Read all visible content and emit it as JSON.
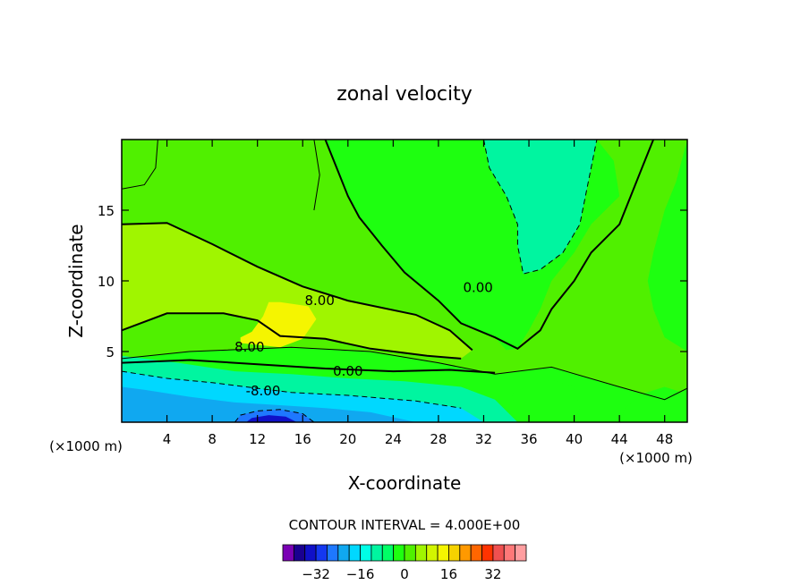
{
  "chart_data": {
    "type": "heatmap",
    "subtype": "filled-contour",
    "title": "zonal velocity",
    "xlabel": "X-coordinate",
    "ylabel": "Z-coordinate",
    "x_unit": "(×1000 m)",
    "x_unit_right": "(×1000 m)",
    "xlim": [
      0,
      50
    ],
    "ylim": [
      0,
      20
    ],
    "x_ticks": [
      "4",
      "8",
      "12",
      "16",
      "20",
      "24",
      "28",
      "32",
      "36",
      "40",
      "44",
      "48"
    ],
    "x_tick_values": [
      4,
      8,
      12,
      16,
      20,
      24,
      28,
      32,
      36,
      40,
      44,
      48
    ],
    "y_ticks": [
      "5",
      "10",
      "15"
    ],
    "y_tick_values": [
      5,
      10,
      15
    ],
    "contour_interval_text": "CONTOUR INTERVAL = 4.000E+00",
    "contour_interval": 4,
    "contour_labels": [
      {
        "text": "8.00",
        "x": 17.5,
        "y": 8.3
      },
      {
        "text": "0.00",
        "x": 31.5,
        "y": 9.2
      },
      {
        "text": "8.00",
        "x": 11.3,
        "y": 5.0
      },
      {
        "text": "0.00",
        "x": 20.0,
        "y": 3.3
      },
      {
        "text": "-8.00",
        "x": 12.5,
        "y": 1.9
      }
    ],
    "regions": [
      {
        "value": 4,
        "polygon": [
          [
            0,
            4.5
          ],
          [
            6,
            5
          ],
          [
            15,
            5.3
          ],
          [
            22,
            5
          ],
          [
            28,
            4.2
          ],
          [
            33,
            3.4
          ],
          [
            38,
            3.9
          ],
          [
            44,
            2.5
          ],
          [
            48,
            1.6
          ],
          [
            50,
            2.4
          ],
          [
            50,
            20
          ],
          [
            0,
            20
          ]
        ]
      },
      {
        "value": 8,
        "polygon": [
          [
            0,
            6.5
          ],
          [
            4,
            7.7
          ],
          [
            9,
            7.7
          ],
          [
            12,
            7.2
          ],
          [
            14,
            6.1
          ],
          [
            18,
            5.9
          ],
          [
            22,
            5.2
          ],
          [
            27,
            4.7
          ],
          [
            30,
            4.5
          ],
          [
            31,
            5.1
          ],
          [
            29,
            6.5
          ],
          [
            26,
            7.6
          ],
          [
            20,
            8.6
          ],
          [
            16,
            9.6
          ],
          [
            12,
            11
          ],
          [
            8,
            12.6
          ],
          [
            4,
            14.1
          ],
          [
            0,
            14
          ]
        ]
      },
      {
        "value": 12,
        "polygon": [
          [
            10.5,
            5.6
          ],
          [
            14,
            5.3
          ],
          [
            16,
            5.9
          ],
          [
            17.2,
            7.3
          ],
          [
            16.5,
            8.2
          ],
          [
            14,
            8.5
          ],
          [
            13,
            8.5
          ],
          [
            12.5,
            7.5
          ],
          [
            11.5,
            6.4
          ],
          [
            10.5,
            6
          ]
        ]
      },
      {
        "value": 0,
        "polygon": [
          [
            32,
            20
          ],
          [
            42,
            20
          ],
          [
            43.5,
            18.5
          ],
          [
            44,
            16
          ],
          [
            41.5,
            14
          ],
          [
            40,
            12
          ],
          [
            38,
            10
          ],
          [
            37,
            8
          ],
          [
            36,
            6.5
          ],
          [
            35,
            5.2
          ],
          [
            34,
            5.1
          ],
          [
            33,
            6
          ],
          [
            30,
            7
          ],
          [
            28,
            8.6
          ],
          [
            25,
            10.6
          ],
          [
            23,
            12.5
          ],
          [
            21,
            14.5
          ],
          [
            20,
            16
          ],
          [
            19,
            18
          ],
          [
            18,
            20
          ]
        ]
      },
      {
        "value": 0,
        "polygon": [
          [
            50,
            5
          ],
          [
            48,
            6
          ],
          [
            47,
            8
          ],
          [
            46.5,
            10
          ],
          [
            47,
            12
          ],
          [
            48,
            15
          ],
          [
            49,
            17
          ],
          [
            50,
            20
          ]
        ]
      },
      {
        "value": 0,
        "polygon": [
          [
            35,
            0
          ],
          [
            40,
            0
          ],
          [
            40.5,
            1
          ],
          [
            40,
            2.5
          ],
          [
            38,
            3
          ],
          [
            36,
            2.6
          ],
          [
            34.5,
            2
          ]
        ]
      },
      {
        "value": 0,
        "polygon": [
          [
            44,
            0
          ],
          [
            50,
            0
          ],
          [
            50,
            2
          ],
          [
            48,
            2.5
          ],
          [
            46,
            2
          ],
          [
            44.5,
            1
          ]
        ]
      },
      {
        "value": -4,
        "polygon": [
          [
            32,
            20
          ],
          [
            42,
            20
          ],
          [
            41,
            16
          ],
          [
            40.5,
            14
          ],
          [
            39,
            12
          ],
          [
            37,
            10.8
          ],
          [
            35.5,
            10.5
          ],
          [
            35,
            12.5
          ],
          [
            35,
            14
          ],
          [
            34,
            16
          ],
          [
            32.5,
            18
          ]
        ]
      },
      {
        "value": -4,
        "polygon": [
          [
            0,
            0
          ],
          [
            35,
            0
          ],
          [
            33,
            1.6
          ],
          [
            30,
            2.5
          ],
          [
            25,
            2.9
          ],
          [
            20,
            3.1
          ],
          [
            15,
            3.4
          ],
          [
            10,
            3.6
          ],
          [
            5,
            4.2
          ],
          [
            0,
            4.7
          ]
        ]
      },
      {
        "value": -8,
        "polygon": [
          [
            0,
            0
          ],
          [
            32,
            0
          ],
          [
            30,
            1
          ],
          [
            26,
            1.5
          ],
          [
            20,
            1.9
          ],
          [
            15,
            2.1
          ],
          [
            11,
            2.5
          ],
          [
            8,
            2.8
          ],
          [
            4,
            3.1
          ],
          [
            0,
            3.6
          ]
        ]
      },
      {
        "value": -12,
        "polygon": [
          [
            0,
            0
          ],
          [
            26,
            0
          ],
          [
            22,
            0.7
          ],
          [
            18,
            1
          ],
          [
            14,
            1.2
          ],
          [
            10,
            1.4
          ],
          [
            6,
            1.8
          ],
          [
            2,
            2.3
          ],
          [
            0,
            2.5
          ]
        ]
      },
      {
        "value": -16,
        "polygon": [
          [
            10,
            0
          ],
          [
            17,
            0
          ],
          [
            16,
            0.6
          ],
          [
            14,
            0.9
          ],
          [
            12,
            0.8
          ],
          [
            10.5,
            0.5
          ]
        ]
      },
      {
        "value": -20,
        "polygon": [
          [
            11,
            0
          ],
          [
            15.5,
            0
          ],
          [
            14.5,
            0.4
          ],
          [
            13,
            0.5
          ],
          [
            11.5,
            0.3
          ]
        ]
      }
    ],
    "contour_lines": [
      {
        "value": 0,
        "style": "solid",
        "points": [
          [
            0,
            4.2
          ],
          [
            6,
            4.4
          ],
          [
            12,
            4.1
          ],
          [
            18,
            3.8
          ],
          [
            24,
            3.6
          ],
          [
            29,
            3.7
          ],
          [
            33,
            3.5
          ]
        ]
      },
      {
        "value": 0,
        "style": "solid",
        "points": [
          [
            18,
            20
          ],
          [
            19,
            18
          ],
          [
            20,
            16
          ],
          [
            21,
            14.5
          ],
          [
            23,
            12.5
          ],
          [
            25,
            10.6
          ],
          [
            28,
            8.6
          ],
          [
            30,
            7
          ],
          [
            33,
            6
          ],
          [
            35,
            5.2
          ],
          [
            37,
            6.5
          ],
          [
            38,
            8
          ],
          [
            40,
            10
          ],
          [
            41.5,
            12
          ],
          [
            44,
            14
          ],
          [
            45,
            16
          ],
          [
            46,
            18
          ],
          [
            47,
            20
          ]
        ]
      },
      {
        "value": 8,
        "style": "solid",
        "points": [
          [
            0,
            14
          ],
          [
            4,
            14.1
          ],
          [
            8,
            12.6
          ],
          [
            12,
            11
          ],
          [
            16,
            9.6
          ],
          [
            20,
            8.6
          ],
          [
            26,
            7.6
          ],
          [
            29,
            6.5
          ],
          [
            31,
            5.1
          ]
        ]
      },
      {
        "value": 8,
        "style": "solid",
        "points": [
          [
            0,
            6.5
          ],
          [
            4,
            7.7
          ],
          [
            9,
            7.7
          ],
          [
            12,
            7.2
          ],
          [
            14,
            6.1
          ],
          [
            18,
            5.9
          ],
          [
            22,
            5.2
          ],
          [
            27,
            4.7
          ],
          [
            30,
            4.5
          ]
        ]
      },
      {
        "value": 4,
        "style": "thin",
        "points": [
          [
            0,
            16.5
          ],
          [
            2,
            16.8
          ],
          [
            3,
            18
          ],
          [
            3.2,
            20
          ]
        ]
      },
      {
        "value": 4,
        "style": "thin",
        "points": [
          [
            17,
            20
          ],
          [
            17.5,
            17.5
          ],
          [
            17,
            15
          ]
        ]
      },
      {
        "value": 4,
        "style": "thin",
        "points": [
          [
            0,
            4.5
          ],
          [
            6,
            5
          ],
          [
            15,
            5.3
          ],
          [
            22,
            5
          ],
          [
            28,
            4.2
          ],
          [
            33,
            3.4
          ],
          [
            38,
            3.9
          ],
          [
            44,
            2.5
          ],
          [
            48,
            1.6
          ],
          [
            50,
            2.4
          ]
        ]
      },
      {
        "value": -8,
        "style": "dashed",
        "points": [
          [
            0,
            3.6
          ],
          [
            4,
            3.1
          ],
          [
            8,
            2.8
          ],
          [
            11,
            2.5
          ],
          [
            15,
            2.1
          ],
          [
            20,
            1.9
          ],
          [
            26,
            1.5
          ],
          [
            30,
            1
          ]
        ]
      },
      {
        "value": -4,
        "style": "dashed",
        "points": [
          [
            32,
            20
          ],
          [
            32.5,
            18
          ],
          [
            34,
            16
          ],
          [
            35,
            14
          ],
          [
            35,
            12.5
          ],
          [
            35.5,
            10.5
          ],
          [
            37,
            10.8
          ],
          [
            39,
            12
          ],
          [
            40.5,
            14
          ],
          [
            41,
            16
          ],
          [
            42,
            20
          ]
        ]
      },
      {
        "value": -16,
        "style": "dashed",
        "points": [
          [
            10,
            0
          ],
          [
            10.5,
            0.5
          ],
          [
            12,
            0.8
          ],
          [
            14,
            0.9
          ],
          [
            16,
            0.6
          ],
          [
            17,
            0
          ]
        ]
      }
    ],
    "colorbar": {
      "colors": [
        "#7a00b4",
        "#1a0090",
        "#1010c8",
        "#1438f0",
        "#1e78ff",
        "#10a8f0",
        "#00d8ff",
        "#00ffe6",
        "#00f5a0",
        "#00ff66",
        "#1eff10",
        "#50f000",
        "#a0f500",
        "#d2f500",
        "#f5f500",
        "#f5d200",
        "#ff9900",
        "#ff6600",
        "#ff3300",
        "#f05050",
        "#ff7878",
        "#ff9ea0"
      ],
      "tick_labels": [
        "-32",
        "-16",
        "0",
        "16",
        "32"
      ],
      "tick_values": [
        -32,
        -16,
        0,
        16,
        32
      ],
      "min": -44,
      "max": 44
    },
    "level_colors": {
      "-20": "#1010c8",
      "-16": "#1e78ff",
      "-12": "#10a8f0",
      "-8": "#00d8ff",
      "-4": "#00f5a0",
      "0": "#1eff10",
      "4": "#50f000",
      "8": "#a0f500",
      "12": "#f5f500"
    },
    "grid": false,
    "legend": "bottom colorbar"
  }
}
